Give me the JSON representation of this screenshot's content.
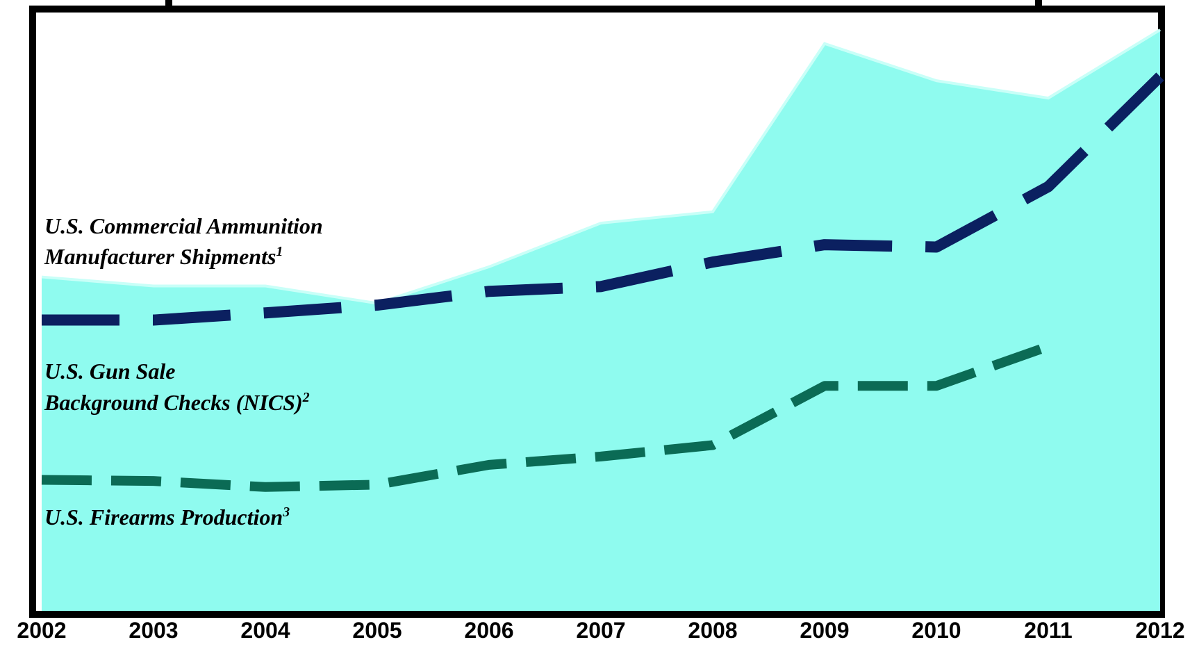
{
  "chart_data": {
    "type": "area",
    "x": [
      "2002",
      "2003",
      "2004",
      "2005",
      "2006",
      "2007",
      "2008",
      "2009",
      "2010",
      "2011",
      "2012"
    ],
    "ylim": [
      0,
      100
    ],
    "series": [
      {
        "name_lines": [
          "U.S. Commercial Ammunition",
          "Manufacturer Shipments"
        ],
        "footnote": "1",
        "kind": "area",
        "color": "#8ffbef",
        "values": [
          55.8,
          54.3,
          54.3,
          51.4,
          57.5,
          64.8,
          66.7,
          94.8,
          88.6,
          85.7,
          97.1
        ]
      },
      {
        "name_lines": [
          "U.S. Gun Sale",
          "Background Checks (NICS)"
        ],
        "footnote": "2",
        "kind": "dashed-line",
        "color": "#0b2060",
        "values": [
          48.6,
          48.6,
          49.8,
          51.1,
          53.4,
          54.2,
          58.3,
          61.2,
          60.8,
          70.9,
          89.3
        ]
      },
      {
        "name_lines": [
          "U.S. Firearms Production"
        ],
        "footnote": "3",
        "kind": "dashed-line",
        "color": "#0b6b55",
        "values": [
          21.9,
          21.7,
          20.7,
          21.1,
          24.4,
          25.8,
          27.7,
          37.6,
          37.6,
          44.2,
          null
        ]
      }
    ]
  }
}
